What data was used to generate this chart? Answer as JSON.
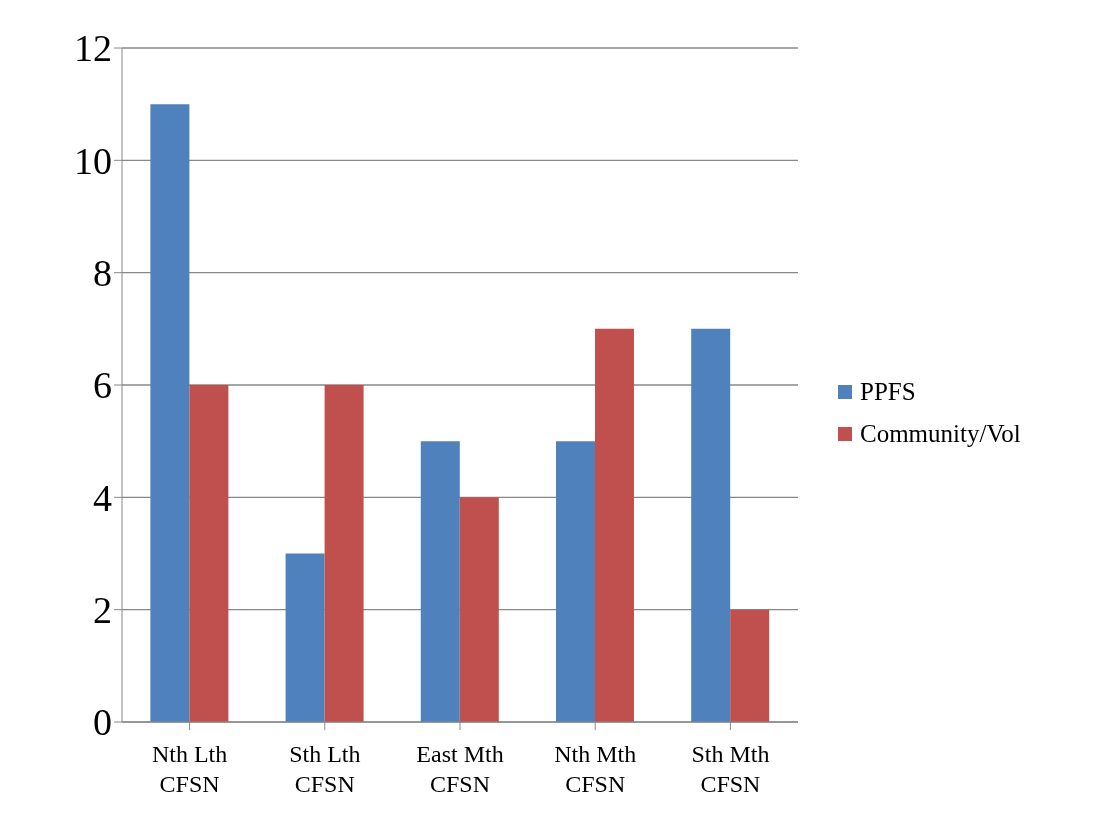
{
  "chart_data": {
    "type": "bar",
    "categories": [
      "Nth Lth CFSN",
      "Sth Lth CFSN",
      "East Mth CFSN",
      "Nth Mth CFSN",
      "Sth Mth CFSN"
    ],
    "series": [
      {
        "name": "PPFS",
        "color": "#4f81bd",
        "values": [
          11,
          3,
          5,
          5,
          7
        ]
      },
      {
        "name": "Community/Vol",
        "color": "#c0504d",
        "values": [
          6,
          6,
          4,
          7,
          2
        ]
      }
    ],
    "ylim": [
      0,
      12
    ],
    "yticks": [
      0,
      2,
      4,
      6,
      8,
      10,
      12
    ],
    "grid": "y",
    "legend": "right"
  }
}
